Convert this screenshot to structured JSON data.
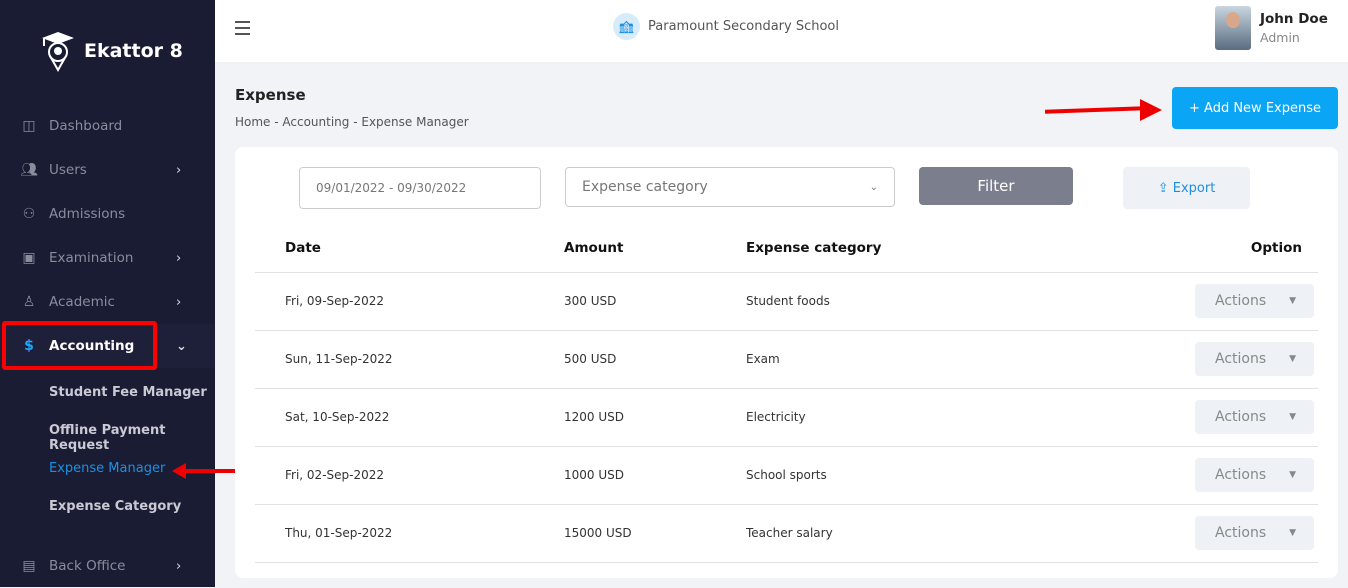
{
  "brand": {
    "name": "Ekattor 8"
  },
  "sidebar": {
    "items": [
      {
        "label": "Dashboard",
        "icon": "grid-icon",
        "chevron": false
      },
      {
        "label": "Users",
        "icon": "users-icon",
        "chevron": true
      },
      {
        "label": "Admissions",
        "icon": "user-plus-icon",
        "chevron": false
      },
      {
        "label": "Examination",
        "icon": "exam-icon",
        "chevron": true
      },
      {
        "label": "Academic",
        "icon": "academic-icon",
        "chevron": true
      },
      {
        "label": "Accounting",
        "icon": "accounting-icon",
        "chevron": true,
        "active": true
      },
      {
        "label": "Back Office",
        "icon": "briefcase-icon",
        "chevron": true
      }
    ],
    "subitems": [
      "Student Fee Manager",
      "Offline Payment Request",
      "Expense Manager",
      "Expense Category"
    ]
  },
  "header": {
    "school": "Paramount Secondary School",
    "user_name": "John Doe",
    "user_role": "Admin"
  },
  "page": {
    "title": "Expense",
    "breadcrumb": "Home - Accounting - Expense Manager",
    "add_button": "+ Add New Expense"
  },
  "filters": {
    "date_range": "09/01/2022 - 09/30/2022",
    "category_placeholder": "Expense category",
    "filter_label": "Filter",
    "export_label": "Export"
  },
  "table": {
    "headers": [
      "Date",
      "Amount",
      "Expense category",
      "Option"
    ],
    "rows": [
      {
        "date": "Fri, 09-Sep-2022",
        "amount": "300 USD",
        "category": "Student foods",
        "action": "Actions"
      },
      {
        "date": "Sun, 11-Sep-2022",
        "amount": "500 USD",
        "category": "Exam",
        "action": "Actions"
      },
      {
        "date": "Sat, 10-Sep-2022",
        "amount": "1200 USD",
        "category": "Electricity",
        "action": "Actions"
      },
      {
        "date": "Fri, 02-Sep-2022",
        "amount": "1000 USD",
        "category": "School sports",
        "action": "Actions"
      },
      {
        "date": "Thu, 01-Sep-2022",
        "amount": "15000 USD",
        "category": "Teacher salary",
        "action": "Actions"
      }
    ]
  },
  "colors": {
    "sidebar": "#1a1c33",
    "accent": "#0ba5f6",
    "highlight": "#ff0000"
  }
}
